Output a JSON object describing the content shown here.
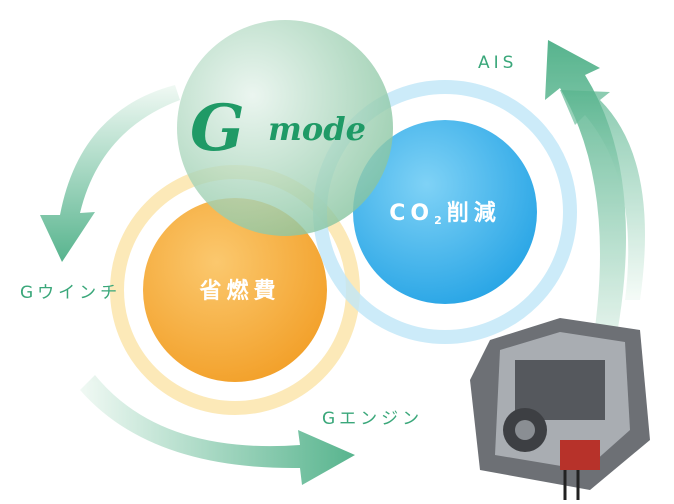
{
  "logo": {
    "initial": "G",
    "text": "mode"
  },
  "nodes": [
    {
      "label": "省燃費"
    },
    {
      "label_main": "CO",
      "label_sub": "2",
      "label_tail": "削減"
    }
  ],
  "labels": [
    "AIS",
    "Gウインチ",
    "Gエンジン"
  ]
}
